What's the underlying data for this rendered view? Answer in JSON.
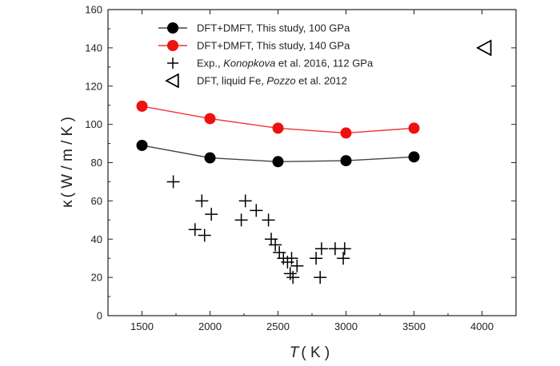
{
  "chart_data": {
    "type": "scatter",
    "xlabel": {
      "symbol": "T",
      "unit": "( K )"
    },
    "ylabel": {
      "symbol": "κ",
      "unit": "( W / m / K )"
    },
    "xlim": [
      1250,
      4250
    ],
    "ylim": [
      0,
      160
    ],
    "xticks": [
      1500,
      2000,
      2500,
      3000,
      3500,
      4000
    ],
    "yticks": [
      0,
      20,
      40,
      60,
      80,
      100,
      120,
      140,
      160
    ],
    "grid": false,
    "legend_position": "top-right",
    "series": [
      {
        "key": "dft100",
        "name_parts": [
          {
            "text": "DFT+DMFT, This study, 100 GPa",
            "italic": false
          }
        ],
        "marker": "circle",
        "connected": true,
        "color": "#000000",
        "line_color": "#444444",
        "x": [
          1500,
          2000,
          2500,
          3000,
          3500
        ],
        "y": [
          89,
          82.5,
          80.5,
          81,
          83
        ]
      },
      {
        "key": "dft140",
        "name_parts": [
          {
            "text": "DFT+DMFT, This study, 140 GPa",
            "italic": false
          }
        ],
        "marker": "circle",
        "connected": true,
        "color": "#ee1111",
        "line_color": "#ee3333",
        "x": [
          1500,
          2000,
          2500,
          3000,
          3500
        ],
        "y": [
          109.5,
          103,
          98,
          95.5,
          98
        ]
      },
      {
        "key": "exp",
        "name_parts": [
          {
            "text": "Exp., ",
            "italic": false
          },
          {
            "text": "Konopkova",
            "italic": true
          },
          {
            "text": " et al. 2016, 112 GPa",
            "italic": false
          }
        ],
        "marker": "plus",
        "connected": false,
        "color": "#000000",
        "x": [
          1730,
          1890,
          1940,
          1960,
          2010,
          2230,
          2260,
          2340,
          2430,
          2450,
          2480,
          2510,
          2540,
          2570,
          2590,
          2600,
          2610,
          2640,
          2780,
          2810,
          2820,
          2920,
          2980,
          2990
        ],
        "y": [
          70,
          45,
          60,
          42,
          53,
          50,
          60,
          55,
          50,
          40,
          37,
          33,
          30,
          28,
          22,
          30,
          20,
          26,
          30,
          20,
          35,
          35,
          30,
          35
        ]
      },
      {
        "key": "pozzo",
        "name_parts": [
          {
            "text": "DFT, liquid Fe, ",
            "italic": false
          },
          {
            "text": "Pozzo",
            "italic": true
          },
          {
            "text": " et al. 2012",
            "italic": false
          }
        ],
        "marker": "triangle-left",
        "connected": false,
        "color": "#000000",
        "x": [
          4020
        ],
        "y": [
          140
        ]
      }
    ]
  }
}
